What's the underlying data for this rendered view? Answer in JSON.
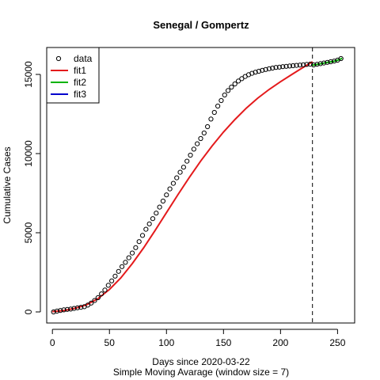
{
  "chart_data": {
    "type": "scatter",
    "title": "Senegal / Gompertz",
    "xlabel": "Days since 2020-03-22",
    "subtitle": "Simple Moving Avarage (window size = 7)",
    "ylabel": "Cumulative Cases",
    "xlim": [
      -5,
      265
    ],
    "ylim": [
      -700,
      16700
    ],
    "xticks": [
      0,
      50,
      100,
      150,
      200,
      250
    ],
    "xtick_labels": [
      "0",
      "50",
      "100",
      "150",
      "200",
      "250"
    ],
    "yticks": [
      0,
      5000,
      10000,
      15000
    ],
    "ytick_labels": [
      "0",
      "5000",
      "10000",
      "15000"
    ],
    "grid": false,
    "legend": {
      "position": "top-left"
    },
    "cutoff_day": 228,
    "series": [
      {
        "name": "data",
        "kind": "points",
        "color": "#000000",
        "x": [
          1,
          4,
          7,
          10,
          13,
          16,
          19,
          22,
          25,
          28,
          31,
          34,
          37,
          40,
          43,
          46,
          49,
          52,
          55,
          58,
          61,
          64,
          67,
          70,
          73,
          76,
          79,
          82,
          85,
          88,
          91,
          94,
          97,
          100,
          103,
          106,
          109,
          112,
          115,
          118,
          121,
          124,
          127,
          130,
          133,
          136,
          139,
          142,
          145,
          148,
          151,
          154,
          157,
          160,
          163,
          166,
          169,
          172,
          175,
          178,
          181,
          184,
          187,
          190,
          193,
          196,
          199,
          202,
          205,
          208,
          211,
          214,
          217,
          220,
          223,
          226
        ],
        "y": [
          0,
          50,
          90,
          130,
          160,
          180,
          220,
          260,
          290,
          330,
          430,
          560,
          720,
          900,
          1140,
          1380,
          1680,
          1960,
          2260,
          2560,
          2860,
          3130,
          3420,
          3720,
          4060,
          4440,
          4830,
          5220,
          5560,
          5890,
          6240,
          6620,
          7000,
          7390,
          7770,
          8120,
          8470,
          8820,
          9140,
          9520,
          9900,
          10280,
          10620,
          10950,
          11300,
          11700,
          12180,
          12600,
          13000,
          13350,
          13700,
          13980,
          14200,
          14400,
          14580,
          14730,
          14870,
          14980,
          15070,
          15140,
          15200,
          15260,
          15310,
          15360,
          15400,
          15440,
          15460,
          15490,
          15510,
          15530,
          15550,
          15570,
          15590,
          15610,
          15630,
          15650
        ]
      },
      {
        "name": "fit1",
        "kind": "line",
        "color": "#e41a1c",
        "x": [
          0,
          10,
          20,
          30,
          40,
          50,
          60,
          70,
          80,
          90,
          100,
          110,
          120,
          130,
          140,
          150,
          160,
          170,
          180,
          190,
          200,
          210,
          220,
          228
        ],
        "y": [
          20,
          90,
          230,
          450,
          840,
          1420,
          2150,
          3050,
          4050,
          5140,
          6270,
          7400,
          8490,
          9530,
          10480,
          11360,
          12150,
          12870,
          13500,
          14050,
          14540,
          15000,
          15450,
          15800
        ]
      },
      {
        "name": "fit2",
        "kind": "line",
        "color": "#00b300",
        "x": [
          228,
          231,
          234,
          237,
          240,
          243,
          246,
          249,
          252,
          254
        ],
        "y": [
          15580,
          15620,
          15660,
          15700,
          15740,
          15780,
          15820,
          15870,
          15950,
          16020
        ]
      },
      {
        "name": "fit3",
        "kind": "line",
        "color": "#0000cc",
        "x": [],
        "y": []
      }
    ],
    "post_points": {
      "x": [
        229,
        232,
        235,
        238,
        241,
        244,
        247,
        250,
        253
      ],
      "y": [
        15600,
        15640,
        15680,
        15720,
        15760,
        15800,
        15840,
        15900,
        16000
      ]
    }
  }
}
